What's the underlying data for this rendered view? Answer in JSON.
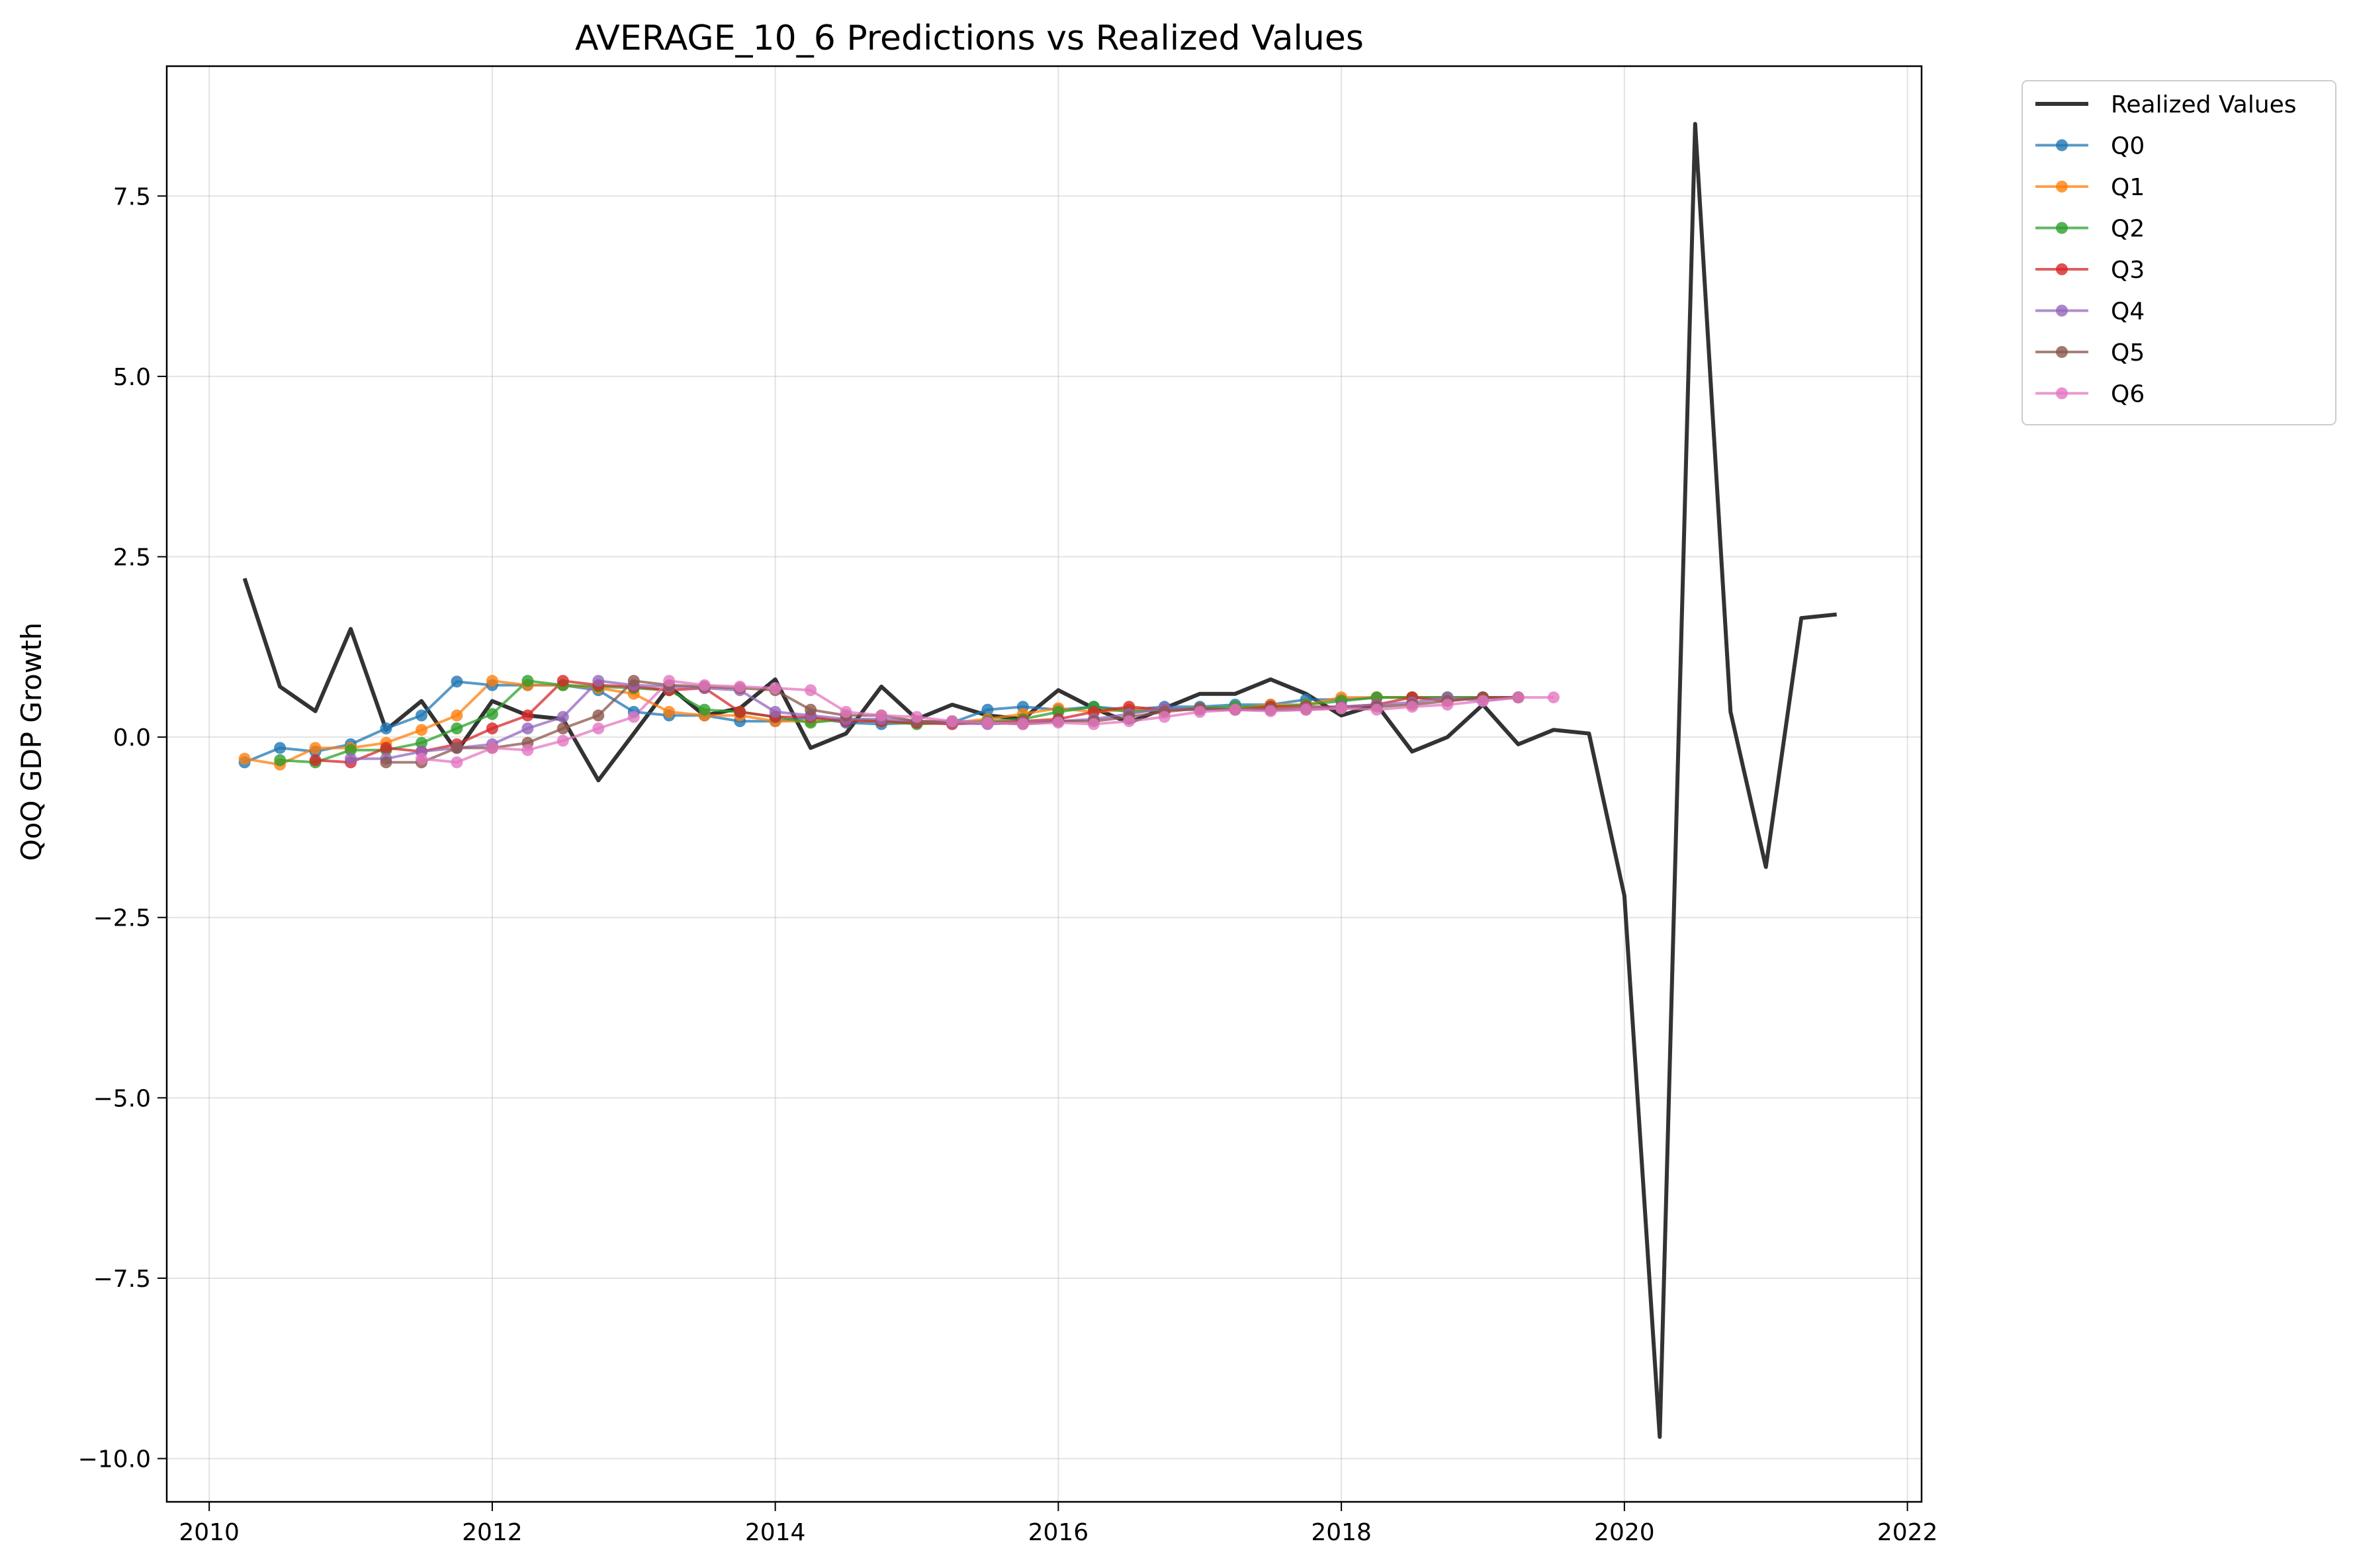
{
  "chart_data": {
    "type": "line",
    "title": "AVERAGE_10_6 Predictions vs Realized Values",
    "xlabel": "",
    "ylabel": "QoQ GDP Growth",
    "xlim": [
      2009.7,
      2022.1
    ],
    "ylim": [
      -10.6,
      9.3
    ],
    "x_ticks": [
      2010,
      2012,
      2014,
      2016,
      2018,
      2020,
      2022
    ],
    "y_ticks": [
      -10.0,
      -7.5,
      -5.0,
      -2.5,
      0.0,
      2.5,
      5.0,
      7.5
    ],
    "y_tick_labels": [
      "−10.0",
      "−7.5",
      "−5.0",
      "−2.5",
      "0.0",
      "2.5",
      "5.0",
      "7.5"
    ],
    "grid": true,
    "legend_position": "outside-top-right",
    "colors": {
      "Realized Values": "#333333",
      "Q0": "#1f77b4",
      "Q1": "#ff7f0e",
      "Q2": "#2ca02c",
      "Q3": "#d62728",
      "Q4": "#9467bd",
      "Q5": "#8c564b",
      "Q6": "#e377c2"
    },
    "realized": {
      "name": "Realized Values",
      "x": [
        2010.25,
        2010.5,
        2010.75,
        2011.0,
        2011.25,
        2011.5,
        2011.75,
        2012.0,
        2012.25,
        2012.5,
        2012.75,
        2013.0,
        2013.25,
        2013.5,
        2013.75,
        2014.0,
        2014.25,
        2014.5,
        2014.75,
        2015.0,
        2015.25,
        2015.5,
        2015.75,
        2016.0,
        2016.25,
        2016.5,
        2016.75,
        2017.0,
        2017.25,
        2017.5,
        2017.75,
        2018.0,
        2018.25,
        2018.5,
        2018.75,
        2019.0,
        2019.25,
        2019.5,
        2019.75,
        2020.0,
        2020.25,
        2020.5,
        2020.75,
        2021.0,
        2021.25,
        2021.5
      ],
      "y": [
        2.2,
        0.7,
        0.36,
        1.5,
        0.1,
        0.5,
        -0.2,
        0.5,
        0.3,
        0.25,
        -0.6,
        0.05,
        0.7,
        0.3,
        0.4,
        0.8,
        -0.15,
        0.05,
        0.7,
        0.25,
        0.45,
        0.3,
        0.25,
        0.65,
        0.4,
        0.2,
        0.4,
        0.6,
        0.6,
        0.8,
        0.6,
        0.3,
        0.45,
        -0.2,
        0.0,
        0.45,
        -0.1,
        0.1,
        0.05,
        -2.2,
        -9.7,
        8.5,
        0.35,
        -1.8,
        1.65,
        1.7
      ]
    },
    "series": [
      {
        "name": "Q0",
        "x": [
          2010.25,
          2010.5,
          2010.75,
          2011.0,
          2011.25,
          2011.5,
          2011.75,
          2012.0,
          2012.25,
          2012.5,
          2012.75,
          2013.0,
          2013.25,
          2013.5,
          2013.75,
          2014.0,
          2014.25,
          2014.5,
          2014.75,
          2015.0,
          2015.25,
          2015.5,
          2015.75,
          2016.0,
          2016.25,
          2016.5,
          2016.75,
          2017.0,
          2017.25,
          2017.5,
          2017.75,
          2018.0,
          2018.25,
          2018.5,
          2018.75,
          2019.0,
          2019.25
        ],
        "y": [
          -0.35,
          -0.15,
          -0.2,
          -0.1,
          0.12,
          0.3,
          0.77,
          0.72,
          0.72,
          0.72,
          0.65,
          0.35,
          0.3,
          0.3,
          0.22,
          0.22,
          0.27,
          0.2,
          0.18,
          0.2,
          0.2,
          0.38,
          0.42,
          0.38,
          0.42,
          0.38,
          0.42,
          0.42,
          0.45,
          0.45,
          0.52,
          0.52,
          0.55,
          0.55,
          0.55,
          0.55,
          0.55
        ]
      },
      {
        "name": "Q1",
        "x": [
          2010.25,
          2010.5,
          2010.75,
          2011.0,
          2011.25,
          2011.5,
          2011.75,
          2012.0,
          2012.25,
          2012.5,
          2012.75,
          2013.0,
          2013.25,
          2013.5,
          2013.75,
          2014.0,
          2014.25,
          2014.5,
          2014.75,
          2015.0,
          2015.25,
          2015.5,
          2015.75,
          2016.0,
          2016.25,
          2016.5,
          2016.75,
          2017.0,
          2017.25,
          2017.5,
          2017.75,
          2018.0,
          2018.25,
          2018.5,
          2018.75,
          2019.0,
          2019.25
        ],
        "y": [
          -0.3,
          -0.38,
          -0.15,
          -0.15,
          -0.08,
          0.1,
          0.3,
          0.78,
          0.72,
          0.72,
          0.68,
          0.6,
          0.35,
          0.3,
          0.3,
          0.22,
          0.22,
          0.25,
          0.22,
          0.2,
          0.2,
          0.25,
          0.32,
          0.4,
          0.35,
          0.38,
          0.38,
          0.4,
          0.4,
          0.45,
          0.45,
          0.55,
          0.55,
          0.55,
          0.55,
          0.55,
          0.55
        ]
      },
      {
        "name": "Q2",
        "x": [
          2010.5,
          2010.75,
          2011.0,
          2011.25,
          2011.5,
          2011.75,
          2012.0,
          2012.25,
          2012.5,
          2012.75,
          2013.0,
          2013.25,
          2013.5,
          2013.75,
          2014.0,
          2014.25,
          2014.5,
          2014.75,
          2015.0,
          2015.25,
          2015.5,
          2015.75,
          2016.0,
          2016.25,
          2016.5,
          2016.75,
          2017.0,
          2017.25,
          2017.5,
          2017.75,
          2018.0,
          2018.25,
          2018.5,
          2018.75,
          2019.0,
          2019.25
        ],
        "y": [
          -0.32,
          -0.35,
          -0.18,
          -0.18,
          -0.08,
          0.12,
          0.32,
          0.78,
          0.72,
          0.7,
          0.68,
          0.65,
          0.38,
          0.35,
          0.28,
          0.2,
          0.25,
          0.22,
          0.18,
          0.2,
          0.22,
          0.25,
          0.35,
          0.42,
          0.35,
          0.38,
          0.4,
          0.42,
          0.42,
          0.45,
          0.5,
          0.55,
          0.55,
          0.55,
          0.55,
          0.55
        ]
      },
      {
        "name": "Q3",
        "x": [
          2010.75,
          2011.0,
          2011.25,
          2011.5,
          2011.75,
          2012.0,
          2012.25,
          2012.5,
          2012.75,
          2013.0,
          2013.25,
          2013.5,
          2013.75,
          2014.0,
          2014.25,
          2014.5,
          2014.75,
          2015.0,
          2015.25,
          2015.5,
          2015.75,
          2016.0,
          2016.25,
          2016.5,
          2016.75,
          2017.0,
          2017.25,
          2017.5,
          2017.75,
          2018.0,
          2018.25,
          2018.5,
          2018.75,
          2019.0,
          2019.25
        ],
        "y": [
          -0.32,
          -0.35,
          -0.15,
          -0.2,
          -0.1,
          0.12,
          0.3,
          0.78,
          0.72,
          0.7,
          0.65,
          0.68,
          0.35,
          0.28,
          0.28,
          0.22,
          0.22,
          0.2,
          0.18,
          0.2,
          0.22,
          0.25,
          0.35,
          0.42,
          0.38,
          0.38,
          0.38,
          0.42,
          0.42,
          0.42,
          0.45,
          0.55,
          0.5,
          0.55,
          0.55
        ]
      },
      {
        "name": "Q4",
        "x": [
          2011.0,
          2011.25,
          2011.5,
          2011.75,
          2012.0,
          2012.25,
          2012.5,
          2012.75,
          2013.0,
          2013.25,
          2013.5,
          2013.75,
          2014.0,
          2014.25,
          2014.5,
          2014.75,
          2015.0,
          2015.25,
          2015.5,
          2015.75,
          2016.0,
          2016.25,
          2016.5,
          2016.75,
          2017.0,
          2017.25,
          2017.5,
          2017.75,
          2018.0,
          2018.25,
          2018.5,
          2018.75,
          2019.0,
          2019.25
        ],
        "y": [
          -0.3,
          -0.3,
          -0.2,
          -0.15,
          -0.1,
          0.12,
          0.28,
          0.78,
          0.72,
          0.7,
          0.68,
          0.65,
          0.35,
          0.3,
          0.25,
          0.25,
          0.22,
          0.2,
          0.18,
          0.2,
          0.22,
          0.25,
          0.32,
          0.4,
          0.38,
          0.38,
          0.38,
          0.4,
          0.42,
          0.45,
          0.48,
          0.55,
          0.5,
          0.55
        ]
      },
      {
        "name": "Q5",
        "x": [
          2011.25,
          2011.5,
          2011.75,
          2012.0,
          2012.25,
          2012.5,
          2012.75,
          2013.0,
          2013.25,
          2013.5,
          2013.75,
          2014.0,
          2014.25,
          2014.5,
          2014.75,
          2015.0,
          2015.25,
          2015.5,
          2015.75,
          2016.0,
          2016.25,
          2016.5,
          2016.75,
          2017.0,
          2017.25,
          2017.5,
          2017.75,
          2018.0,
          2018.25,
          2018.5,
          2018.75,
          2019.0,
          2019.25
        ],
        "y": [
          -0.35,
          -0.35,
          -0.15,
          -0.15,
          -0.08,
          0.12,
          0.3,
          0.78,
          0.72,
          0.7,
          0.68,
          0.65,
          0.38,
          0.3,
          0.3,
          0.22,
          0.22,
          0.2,
          0.18,
          0.22,
          0.22,
          0.28,
          0.35,
          0.4,
          0.38,
          0.38,
          0.38,
          0.4,
          0.42,
          0.45,
          0.5,
          0.55,
          0.55
        ]
      },
      {
        "name": "Q6",
        "x": [
          2011.5,
          2011.75,
          2012.0,
          2012.25,
          2012.5,
          2012.75,
          2013.0,
          2013.25,
          2013.5,
          2013.75,
          2014.0,
          2014.25,
          2014.5,
          2014.75,
          2015.0,
          2015.25,
          2015.5,
          2015.75,
          2016.0,
          2016.25,
          2016.5,
          2016.75,
          2017.0,
          2017.25,
          2017.5,
          2017.75,
          2018.0,
          2018.25,
          2018.5,
          2018.75,
          2019.0,
          2019.25,
          2019.5
        ],
        "y": [
          -0.3,
          -0.35,
          -0.15,
          -0.18,
          -0.05,
          0.12,
          0.28,
          0.78,
          0.72,
          0.7,
          0.68,
          0.65,
          0.35,
          0.3,
          0.28,
          0.22,
          0.2,
          0.18,
          0.2,
          0.18,
          0.22,
          0.28,
          0.35,
          0.38,
          0.36,
          0.38,
          0.4,
          0.38,
          0.42,
          0.45,
          0.5,
          0.55,
          0.55
        ]
      }
    ]
  }
}
